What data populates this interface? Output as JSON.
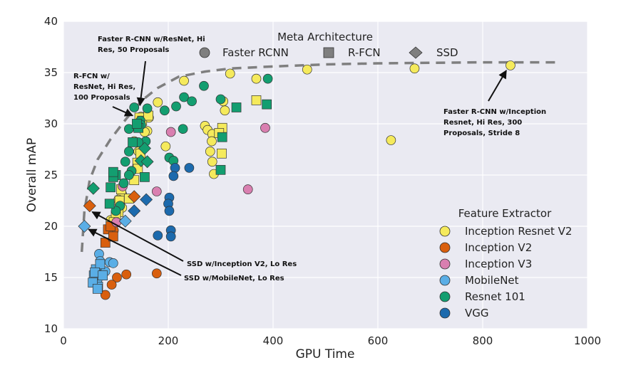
{
  "chart_data": {
    "type": "scatter",
    "xlabel": "GPU Time",
    "ylabel": "Overall mAP",
    "xlim": [
      0,
      1000
    ],
    "ylim": [
      10,
      40
    ],
    "xticks": [
      "0",
      "200",
      "400",
      "600",
      "800",
      "1000"
    ],
    "yticks": [
      "10",
      "15",
      "20",
      "25",
      "30",
      "35",
      "40"
    ],
    "grid": true,
    "background": "#eaeaf2",
    "marker_legend": {
      "title": "Meta Architecture",
      "placement": "top-center",
      "entries": [
        {
          "name": "Faster RCNN",
          "marker": "circle"
        },
        {
          "name": "R-FCN",
          "marker": "square"
        },
        {
          "name": "SSD",
          "marker": "diamond"
        }
      ]
    },
    "color_legend": {
      "title": "Feature Extractor",
      "placement": "lower-right",
      "entries": [
        {
          "name": "Inception Resnet V2",
          "color": "#f5ea5c"
        },
        {
          "name": "Inception V2",
          "color": "#d95f0e"
        },
        {
          "name": "Inception V3",
          "color": "#d97fb0"
        },
        {
          "name": "MobileNet",
          "color": "#5aaee6"
        },
        {
          "name": "Resnet 101",
          "color": "#139e70"
        },
        {
          "name": "VGG",
          "color": "#1c6aad"
        }
      ]
    },
    "frontier": {
      "style": "dashed",
      "color": "#7f7f7f",
      "x": [
        35,
        40,
        50,
        65,
        90,
        120,
        150,
        180,
        220,
        270,
        320,
        400,
        500,
        600,
        700,
        800,
        950
      ],
      "y": [
        17.5,
        21.5,
        24.5,
        26.5,
        28.5,
        30.5,
        32.3,
        33.5,
        34.6,
        35.1,
        35.4,
        35.6,
        35.8,
        35.9,
        35.95,
        36.0,
        36.0
      ]
    },
    "series": [
      {
        "extractor": "Inception Resnet V2",
        "arch": "Faster RCNN",
        "points": [
          [
            853,
            35.7
          ],
          [
            670,
            35.4
          ],
          [
            465,
            35.3
          ],
          [
            368,
            34.4
          ],
          [
            318,
            34.9
          ],
          [
            230,
            34.2
          ],
          [
            180,
            32.1
          ],
          [
            305,
            32.2
          ],
          [
            308,
            31.3
          ],
          [
            160,
            29.3
          ],
          [
            148,
            30.7
          ],
          [
            163,
            30.6
          ],
          [
            155,
            29.2
          ],
          [
            135,
            28.3
          ],
          [
            270,
            29.8
          ],
          [
            275,
            29.4
          ],
          [
            284,
            29.0
          ],
          [
            283,
            28.3
          ],
          [
            280,
            27.3
          ],
          [
            284,
            26.3
          ],
          [
            287,
            25.1
          ],
          [
            195,
            27.8
          ],
          [
            625,
            28.4
          ],
          [
            143,
            27.3
          ],
          [
            112,
            23.1
          ],
          [
            105,
            22.6
          ],
          [
            108,
            22.2
          ],
          [
            112,
            21.8
          ],
          [
            100,
            21.0
          ],
          [
            90,
            20.6
          ]
        ]
      },
      {
        "extractor": "Inception Resnet V2",
        "arch": "R-FCN",
        "points": [
          [
            145,
            30.6
          ],
          [
            150,
            30.3
          ],
          [
            162,
            30.8
          ],
          [
            368,
            32.3
          ],
          [
            303,
            29.6
          ],
          [
            297,
            29.1
          ],
          [
            302,
            27.1
          ],
          [
            147,
            27.1
          ],
          [
            141,
            26.2
          ],
          [
            142,
            25.6
          ],
          [
            135,
            24.5
          ],
          [
            110,
            23.6
          ],
          [
            107,
            22.5
          ],
          [
            105,
            21.4
          ],
          [
            100,
            21.0
          ],
          [
            96,
            20.4
          ],
          [
            125,
            22.7
          ]
        ]
      },
      {
        "extractor": "Inception V2",
        "arch": "Faster RCNN",
        "points": [
          [
            178,
            15.4
          ],
          [
            120,
            15.3
          ],
          [
            102,
            15.0
          ],
          [
            92,
            14.3
          ],
          [
            80,
            13.3
          ],
          [
            90,
            19.8
          ],
          [
            96,
            19.6
          ]
        ]
      },
      {
        "extractor": "Inception V2",
        "arch": "R-FCN",
        "points": [
          [
            80,
            18.4
          ],
          [
            85,
            19.7
          ],
          [
            90,
            20.0
          ],
          [
            95,
            19.0
          ]
        ]
      },
      {
        "extractor": "Inception V2",
        "arch": "SSD",
        "points": [
          [
            50,
            22.0
          ],
          [
            135,
            22.9
          ]
        ]
      },
      {
        "extractor": "Inception V3",
        "arch": "Faster RCNN",
        "points": [
          [
            205,
            29.2
          ],
          [
            385,
            29.6
          ],
          [
            352,
            23.6
          ],
          [
            178,
            23.4
          ],
          [
            113,
            23.9
          ],
          [
            101,
            20.4
          ]
        ]
      },
      {
        "extractor": "MobileNet",
        "arch": "Faster RCNN",
        "points": [
          [
            68,
            17.3
          ],
          [
            70,
            16.6
          ],
          [
            88,
            16.5
          ],
          [
            95,
            16.4
          ],
          [
            72,
            15.5
          ],
          [
            60,
            14.5
          ],
          [
            65,
            14.8
          ],
          [
            80,
            15.6
          ]
        ]
      },
      {
        "extractor": "MobileNet",
        "arch": "R-FCN",
        "points": [
          [
            58,
            15.2
          ],
          [
            62,
            15.8
          ],
          [
            66,
            14.1
          ],
          [
            56,
            14.5
          ],
          [
            70,
            16.3
          ],
          [
            60,
            15.5
          ],
          [
            65,
            13.9
          ],
          [
            75,
            15.2
          ]
        ]
      },
      {
        "extractor": "MobileNet",
        "arch": "SSD",
        "points": [
          [
            40,
            20.0
          ],
          [
            118,
            20.5
          ]
        ]
      },
      {
        "extractor": "Resnet 101",
        "arch": "Faster RCNN",
        "points": [
          [
            390,
            34.4
          ],
          [
            300,
            32.4
          ],
          [
            268,
            33.7
          ],
          [
            230,
            32.6
          ],
          [
            245,
            32.2
          ],
          [
            215,
            31.7
          ],
          [
            193,
            31.3
          ],
          [
            160,
            31.5
          ],
          [
            135,
            31.6
          ],
          [
            147,
            30.3
          ],
          [
            157,
            28.3
          ],
          [
            143,
            28.2
          ],
          [
            125,
            29.5
          ],
          [
            148,
            29.9
          ],
          [
            228,
            29.5
          ],
          [
            202,
            26.7
          ],
          [
            210,
            26.4
          ],
          [
            130,
            25.4
          ],
          [
            125,
            25.0
          ],
          [
            115,
            24.2
          ],
          [
            108,
            22.0
          ],
          [
            100,
            21.5
          ],
          [
            118,
            26.3
          ],
          [
            125,
            27.3
          ]
        ]
      },
      {
        "extractor": "Resnet 101",
        "arch": "R-FCN",
        "points": [
          [
            388,
            31.9
          ],
          [
            330,
            31.6
          ],
          [
            303,
            28.7
          ],
          [
            300,
            25.5
          ],
          [
            143,
            29.6
          ],
          [
            132,
            28.2
          ],
          [
            100,
            25.0
          ],
          [
            95,
            24.8
          ],
          [
            90,
            23.8
          ],
          [
            88,
            22.2
          ],
          [
            95,
            25.3
          ],
          [
            140,
            30.0
          ],
          [
            155,
            24.8
          ]
        ]
      },
      {
        "extractor": "Resnet 101",
        "arch": "SSD",
        "points": [
          [
            57,
            23.7
          ],
          [
            148,
            26.4
          ],
          [
            155,
            27.6
          ],
          [
            160,
            26.3
          ]
        ]
      },
      {
        "extractor": "VGG",
        "arch": "Faster RCNN",
        "points": [
          [
            240,
            25.7
          ],
          [
            213,
            25.7
          ],
          [
            210,
            24.9
          ],
          [
            202,
            22.8
          ],
          [
            200,
            22.2
          ],
          [
            202,
            21.5
          ],
          [
            205,
            19.6
          ],
          [
            205,
            19.0
          ],
          [
            180,
            19.1
          ]
        ]
      },
      {
        "extractor": "VGG",
        "arch": "SSD",
        "points": [
          [
            135,
            21.5
          ],
          [
            158,
            22.6
          ]
        ]
      }
    ],
    "annotations": [
      {
        "text_lines": [
          "Faster R-CNN w/ResNet, Hi",
          "Res, 50 Proposals"
        ],
        "arrow_to": [
          146,
          31.8
        ]
      },
      {
        "text_lines": [
          "R-FCN w/",
          "ResNet, Hi Res,",
          "100 Proposals"
        ],
        "arrow_to": [
          132,
          30.8
        ]
      },
      {
        "text_lines": [
          "Faster R-CNN w/Inception",
          "Resnet, Hi Res, 300",
          "Proposals, Stride 8"
        ],
        "arrow_to": [
          845,
          35.2
        ]
      },
      {
        "text_lines": [
          "SSD w/Inception V2, Lo Res"
        ],
        "arrow_to": [
          55,
          21.4
        ]
      },
      {
        "text_lines": [
          "SSD w/MobileNet, Lo Res"
        ],
        "arrow_to": [
          48,
          19.7
        ]
      }
    ]
  }
}
